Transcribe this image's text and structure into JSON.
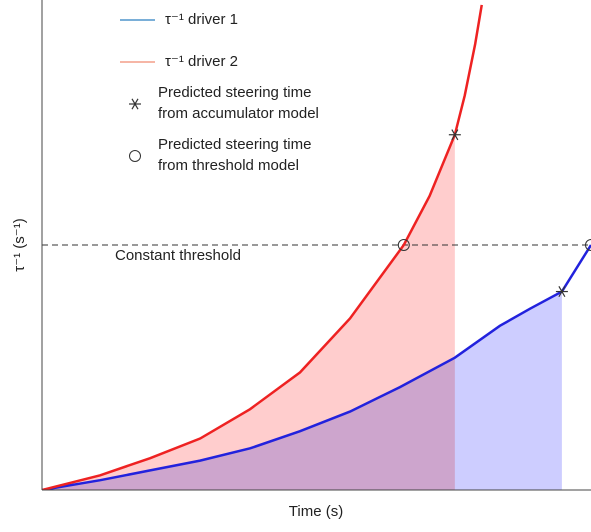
{
  "chart_data": {
    "type": "line",
    "xlabel": "Time (s)",
    "ylabel": "τ⁻¹ (s⁻¹)",
    "xlim": [
      0,
      10
    ],
    "ylim": [
      0,
      2
    ],
    "series": [
      {
        "name": "τ⁻¹ driver 1",
        "color": "#2222dd",
        "legend_color": "#2a7fc0",
        "fill": "#bcbcff",
        "x": [
          0,
          1.06,
          1.97,
          2.88,
          3.79,
          4.7,
          5.61,
          6.52,
          7.52,
          8.34,
          8.89,
          9.47,
          10
        ],
        "values": [
          0,
          0.04,
          0.08,
          0.12,
          0.17,
          0.24,
          0.32,
          0.42,
          0.54,
          0.67,
          0.74,
          0.81,
          1.0
        ]
      },
      {
        "name": "τ⁻¹ driver 2",
        "color": "#ee2222",
        "legend_color": "#f08a70",
        "fill": "#ffbcbc",
        "x": [
          0,
          1.06,
          1.97,
          2.88,
          3.79,
          4.7,
          5.61,
          6.59,
          7.06,
          7.52,
          7.7,
          7.89,
          8.01
        ],
        "values": [
          0,
          0.06,
          0.13,
          0.21,
          0.33,
          0.48,
          0.7,
          1.0,
          1.2,
          1.45,
          1.61,
          1.82,
          1.98
        ]
      }
    ],
    "markers": [
      {
        "name": [
          "Predicted steering time",
          "from accumulator model"
        ],
        "symbol": "asterisk",
        "x": [
          9.47,
          7.52
        ],
        "values": [
          0.81,
          1.45
        ]
      },
      {
        "name": [
          "Predicted steering time",
          "from threshold model"
        ],
        "symbol": "circle",
        "x": [
          10,
          6.59
        ],
        "values": [
          1.0,
          1.0
        ]
      }
    ],
    "threshold": {
      "label": "Constant threshold",
      "value": 1.0
    }
  }
}
